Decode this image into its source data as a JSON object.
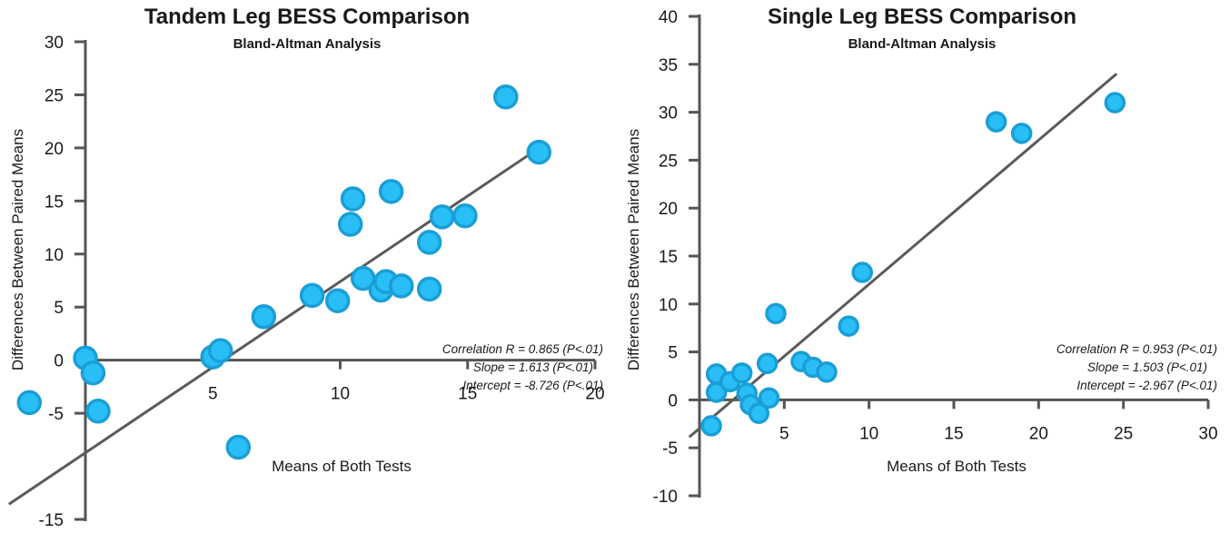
{
  "chart_data": [
    {
      "type": "scatter",
      "title": "Tandem Leg BESS Comparison",
      "subtitle": "Bland-Altman Analysis",
      "xlabel": "Means of Both Tests",
      "ylabel": "Differences Between Paired Means",
      "xlim": [
        0,
        20
      ],
      "ylim": [
        -15,
        30
      ],
      "xticks": [
        5,
        10,
        15,
        20
      ],
      "yticks": [
        -15,
        -5,
        0,
        5,
        10,
        15,
        20,
        25,
        30
      ],
      "ytick_labels": [
        "-15",
        "-5",
        "0",
        "5",
        "10",
        "15",
        "20",
        "25",
        "30"
      ],
      "xtick_labels": [
        "5",
        "10",
        "15",
        "20"
      ],
      "points": [
        {
          "x": -2.2,
          "y": -4.0
        },
        {
          "x": 0.0,
          "y": 0.2
        },
        {
          "x": 0.3,
          "y": -1.2
        },
        {
          "x": 0.5,
          "y": -4.8
        },
        {
          "x": 5.0,
          "y": 0.3
        },
        {
          "x": 5.3,
          "y": 0.9
        },
        {
          "x": 6.0,
          "y": -8.2
        },
        {
          "x": 7.0,
          "y": 4.1
        },
        {
          "x": 8.9,
          "y": 6.1
        },
        {
          "x": 9.9,
          "y": 5.6
        },
        {
          "x": 10.4,
          "y": 12.8
        },
        {
          "x": 10.5,
          "y": 15.2
        },
        {
          "x": 10.9,
          "y": 7.7
        },
        {
          "x": 11.6,
          "y": 6.6
        },
        {
          "x": 11.8,
          "y": 7.4
        },
        {
          "x": 12.0,
          "y": 15.9
        },
        {
          "x": 12.4,
          "y": 7.0
        },
        {
          "x": 13.5,
          "y": 11.1
        },
        {
          "x": 13.5,
          "y": 6.7
        },
        {
          "x": 14.0,
          "y": 13.5
        },
        {
          "x": 14.9,
          "y": 13.6
        },
        {
          "x": 16.5,
          "y": 24.8
        },
        {
          "x": 17.8,
          "y": 19.6
        }
      ],
      "regression": {
        "slope": 1.613,
        "intercept": -8.726,
        "x_range": [
          -3.0,
          17.8
        ]
      },
      "annotations": [
        "Correlation R = 0.865 (P<.01)",
        "Slope = 1.613 (P<.01)",
        "Intercept = -8.726 (P<.01)"
      ]
    },
    {
      "type": "scatter",
      "title": "Single Leg BESS Comparison",
      "subtitle": "Bland-Altman Analysis",
      "xlabel": "Means of Both Tests",
      "ylabel": "Differences Between Paired Means",
      "xlim": [
        0,
        30
      ],
      "ylim": [
        -10,
        40
      ],
      "xticks": [
        5,
        10,
        15,
        20,
        25,
        30
      ],
      "yticks": [
        -10,
        -5,
        0,
        5,
        10,
        15,
        20,
        25,
        30,
        35,
        40
      ],
      "ytick_labels": [
        "-10",
        "-5",
        "0",
        "5",
        "10",
        "15",
        "20",
        "25",
        "30",
        "35",
        "40"
      ],
      "xtick_labels": [
        "5",
        "10",
        "15",
        "20",
        "25",
        "30"
      ],
      "points": [
        {
          "x": 0.7,
          "y": -2.7
        },
        {
          "x": 1.0,
          "y": 2.7
        },
        {
          "x": 1.0,
          "y": 0.8
        },
        {
          "x": 1.8,
          "y": 1.9
        },
        {
          "x": 2.5,
          "y": 2.8
        },
        {
          "x": 2.8,
          "y": 0.7
        },
        {
          "x": 3.0,
          "y": -0.5
        },
        {
          "x": 3.5,
          "y": -1.4
        },
        {
          "x": 4.0,
          "y": 3.8
        },
        {
          "x": 4.1,
          "y": 0.2
        },
        {
          "x": 4.5,
          "y": 9.0
        },
        {
          "x": 6.0,
          "y": 4.0
        },
        {
          "x": 6.7,
          "y": 3.4
        },
        {
          "x": 7.5,
          "y": 2.9
        },
        {
          "x": 8.8,
          "y": 7.7
        },
        {
          "x": 9.6,
          "y": 13.3
        },
        {
          "x": 17.5,
          "y": 29.0
        },
        {
          "x": 19.0,
          "y": 27.8
        },
        {
          "x": 24.5,
          "y": 31.0
        }
      ],
      "regression": {
        "slope": 1.503,
        "intercept": -2.967,
        "x_range": [
          -0.6,
          24.6
        ]
      },
      "annotations": [
        "Correlation R = 0.953 (P<.01)",
        "Slope = 1.503 (P<.01)",
        "Intercept = -2.967 (P<.01)"
      ]
    }
  ]
}
